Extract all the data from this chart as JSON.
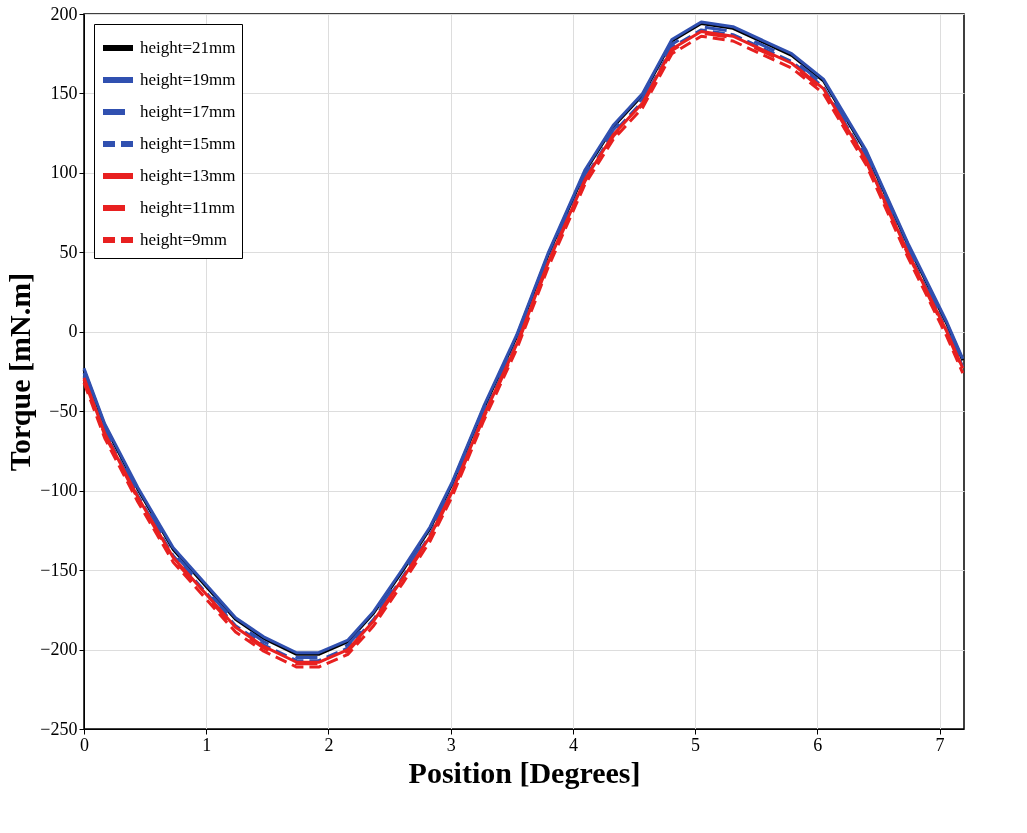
{
  "chart_data": {
    "type": "line",
    "xlabel": "Position [Degrees]",
    "ylabel": "Torque [mN.m]",
    "xlim": [
      0,
      7.2
    ],
    "xticks": [
      0,
      1,
      2,
      3,
      4,
      5,
      6,
      7
    ],
    "ylim": [
      -250,
      200
    ],
    "yticks": [
      -250,
      -200,
      -150,
      -100,
      -50,
      0,
      50,
      100,
      150,
      200
    ],
    "grid": true,
    "legend": "top left",
    "marker": "none",
    "x": [
      0,
      0.17,
      0.44,
      0.73,
      1.02,
      1.24,
      1.47,
      1.74,
      1.92,
      2.16,
      2.37,
      2.61,
      2.83,
      3.01,
      3.27,
      3.54,
      3.8,
      4.1,
      4.33,
      4.57,
      4.81,
      5.05,
      5.31,
      5.79,
      6.05,
      6.4,
      6.74,
      7.06,
      7.19
    ],
    "series": [
      {
        "name": "height=21mm",
        "color": "#000000",
        "line_style": "solid",
        "values": [
          -24,
          -59,
          -99,
          -137,
          -162,
          -181,
          -193,
          -203,
          -203,
          -195,
          -177,
          -150,
          -124,
          -96,
          -48,
          -3,
          49,
          101,
          129,
          149,
          183,
          194,
          191,
          174,
          158,
          113,
          55,
          5,
          -18
        ]
      },
      {
        "name": "height=19mm",
        "color": "#3050b0",
        "line_style": "solid",
        "values": [
          -23,
          -58,
          -98,
          -136,
          -161,
          -180,
          -192,
          -202,
          -202,
          -194,
          -176,
          -149,
          -123,
          -95,
          -47,
          -2,
          50,
          102,
          130,
          150,
          184,
          195,
          192,
          175,
          159,
          114,
          56,
          6,
          -17
        ]
      },
      {
        "name": "height=17mm",
        "color": "#3050b0",
        "line_style": "dashed",
        "values": [
          -26,
          -61,
          -101,
          -139,
          -164,
          -183,
          -195,
          -205,
          -205,
          -197,
          -179,
          -152,
          -126,
          -98,
          -50,
          -5,
          47,
          99,
          127,
          147,
          181,
          192,
          189,
          172,
          156,
          111,
          53,
          3,
          -20
        ]
      },
      {
        "name": "height=15mm",
        "color": "#3050b0",
        "line_style": "dotted",
        "values": [
          -28,
          -63,
          -103,
          -141,
          -166,
          -185,
          -197,
          -207,
          -207,
          -199,
          -181,
          -154,
          -128,
          -100,
          -52,
          -7,
          45,
          97,
          125,
          145,
          179,
          190,
          187,
          170,
          154,
          109,
          51,
          1,
          -22
        ]
      },
      {
        "name": "height=13mm",
        "color": "#e82020",
        "line_style": "solid",
        "values": [
          -29,
          -64,
          -104,
          -142,
          -167,
          -186,
          -198,
          -208,
          -208,
          -200,
          -182,
          -155,
          -129,
          -101,
          -53,
          -8,
          44,
          96,
          124,
          144,
          178,
          189,
          186,
          169,
          153,
          108,
          50,
          0,
          -23
        ]
      },
      {
        "name": "height=11mm",
        "color": "#e82020",
        "line_style": "dashed",
        "values": [
          -30,
          -65,
          -105,
          -143,
          -168,
          -187,
          -199,
          -209,
          -209,
          -201,
          -183,
          -156,
          -130,
          -102,
          -54,
          -9,
          43,
          95,
          123,
          143,
          177,
          188,
          185,
          168,
          152,
          107,
          49,
          -1,
          -24
        ]
      },
      {
        "name": "height=9mm",
        "color": "#e82020",
        "line_style": "dotted",
        "values": [
          -32,
          -67,
          -107,
          -145,
          -170,
          -189,
          -201,
          -211,
          -211,
          -203,
          -185,
          -158,
          -132,
          -104,
          -56,
          -11,
          41,
          93,
          121,
          141,
          175,
          186,
          183,
          166,
          150,
          105,
          47,
          -3,
          -26
        ]
      }
    ]
  }
}
